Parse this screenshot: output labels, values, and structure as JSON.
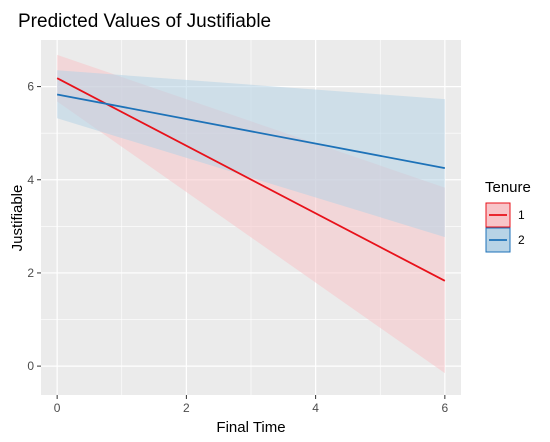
{
  "chart_data": {
    "type": "line",
    "title": "Predicted Values of Justifiable",
    "xlabel": "Final Time",
    "ylabel": "Justifiable",
    "xlim": [
      -0.25,
      6.25
    ],
    "ylim": [
      -0.62,
      7.0
    ],
    "xticks": [
      0,
      2,
      4,
      6
    ],
    "yticks": [
      0,
      2,
      4,
      6
    ],
    "grid": true,
    "legend": {
      "title": "Tenure",
      "position": "right"
    },
    "series": [
      {
        "name": "1",
        "color": "#e8111a",
        "band_color": "#f8c5c9",
        "x": [
          0,
          6
        ],
        "y": [
          6.18,
          1.83
        ],
        "lower": [
          5.68,
          -0.15
        ],
        "upper": [
          6.68,
          3.83
        ]
      },
      {
        "name": "2",
        "color": "#1d72b8",
        "band_color": "#b7d3e6",
        "x": [
          0,
          6
        ],
        "y": [
          5.83,
          4.25
        ],
        "lower": [
          5.32,
          2.77
        ],
        "upper": [
          6.35,
          5.73
        ]
      }
    ]
  }
}
